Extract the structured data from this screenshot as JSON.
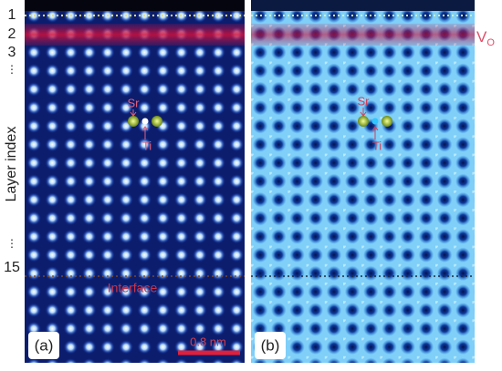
{
  "panel_a": {
    "layer_labels": [
      "1",
      "2",
      "3",
      "⋮",
      "⋮",
      "15"
    ],
    "axis_label": "Layer index",
    "sr_label": "Sr",
    "ti_label": "Ti",
    "interface_label": "Interface",
    "panel_label": "(a)",
    "scale_bar_label": "0.8 nm"
  },
  "panel_b": {
    "sr_label": "Sr",
    "ti_label": "Ti",
    "vacancy_label": "V",
    "vacancy_subscript": "O",
    "panel_label": "(b)"
  }
}
